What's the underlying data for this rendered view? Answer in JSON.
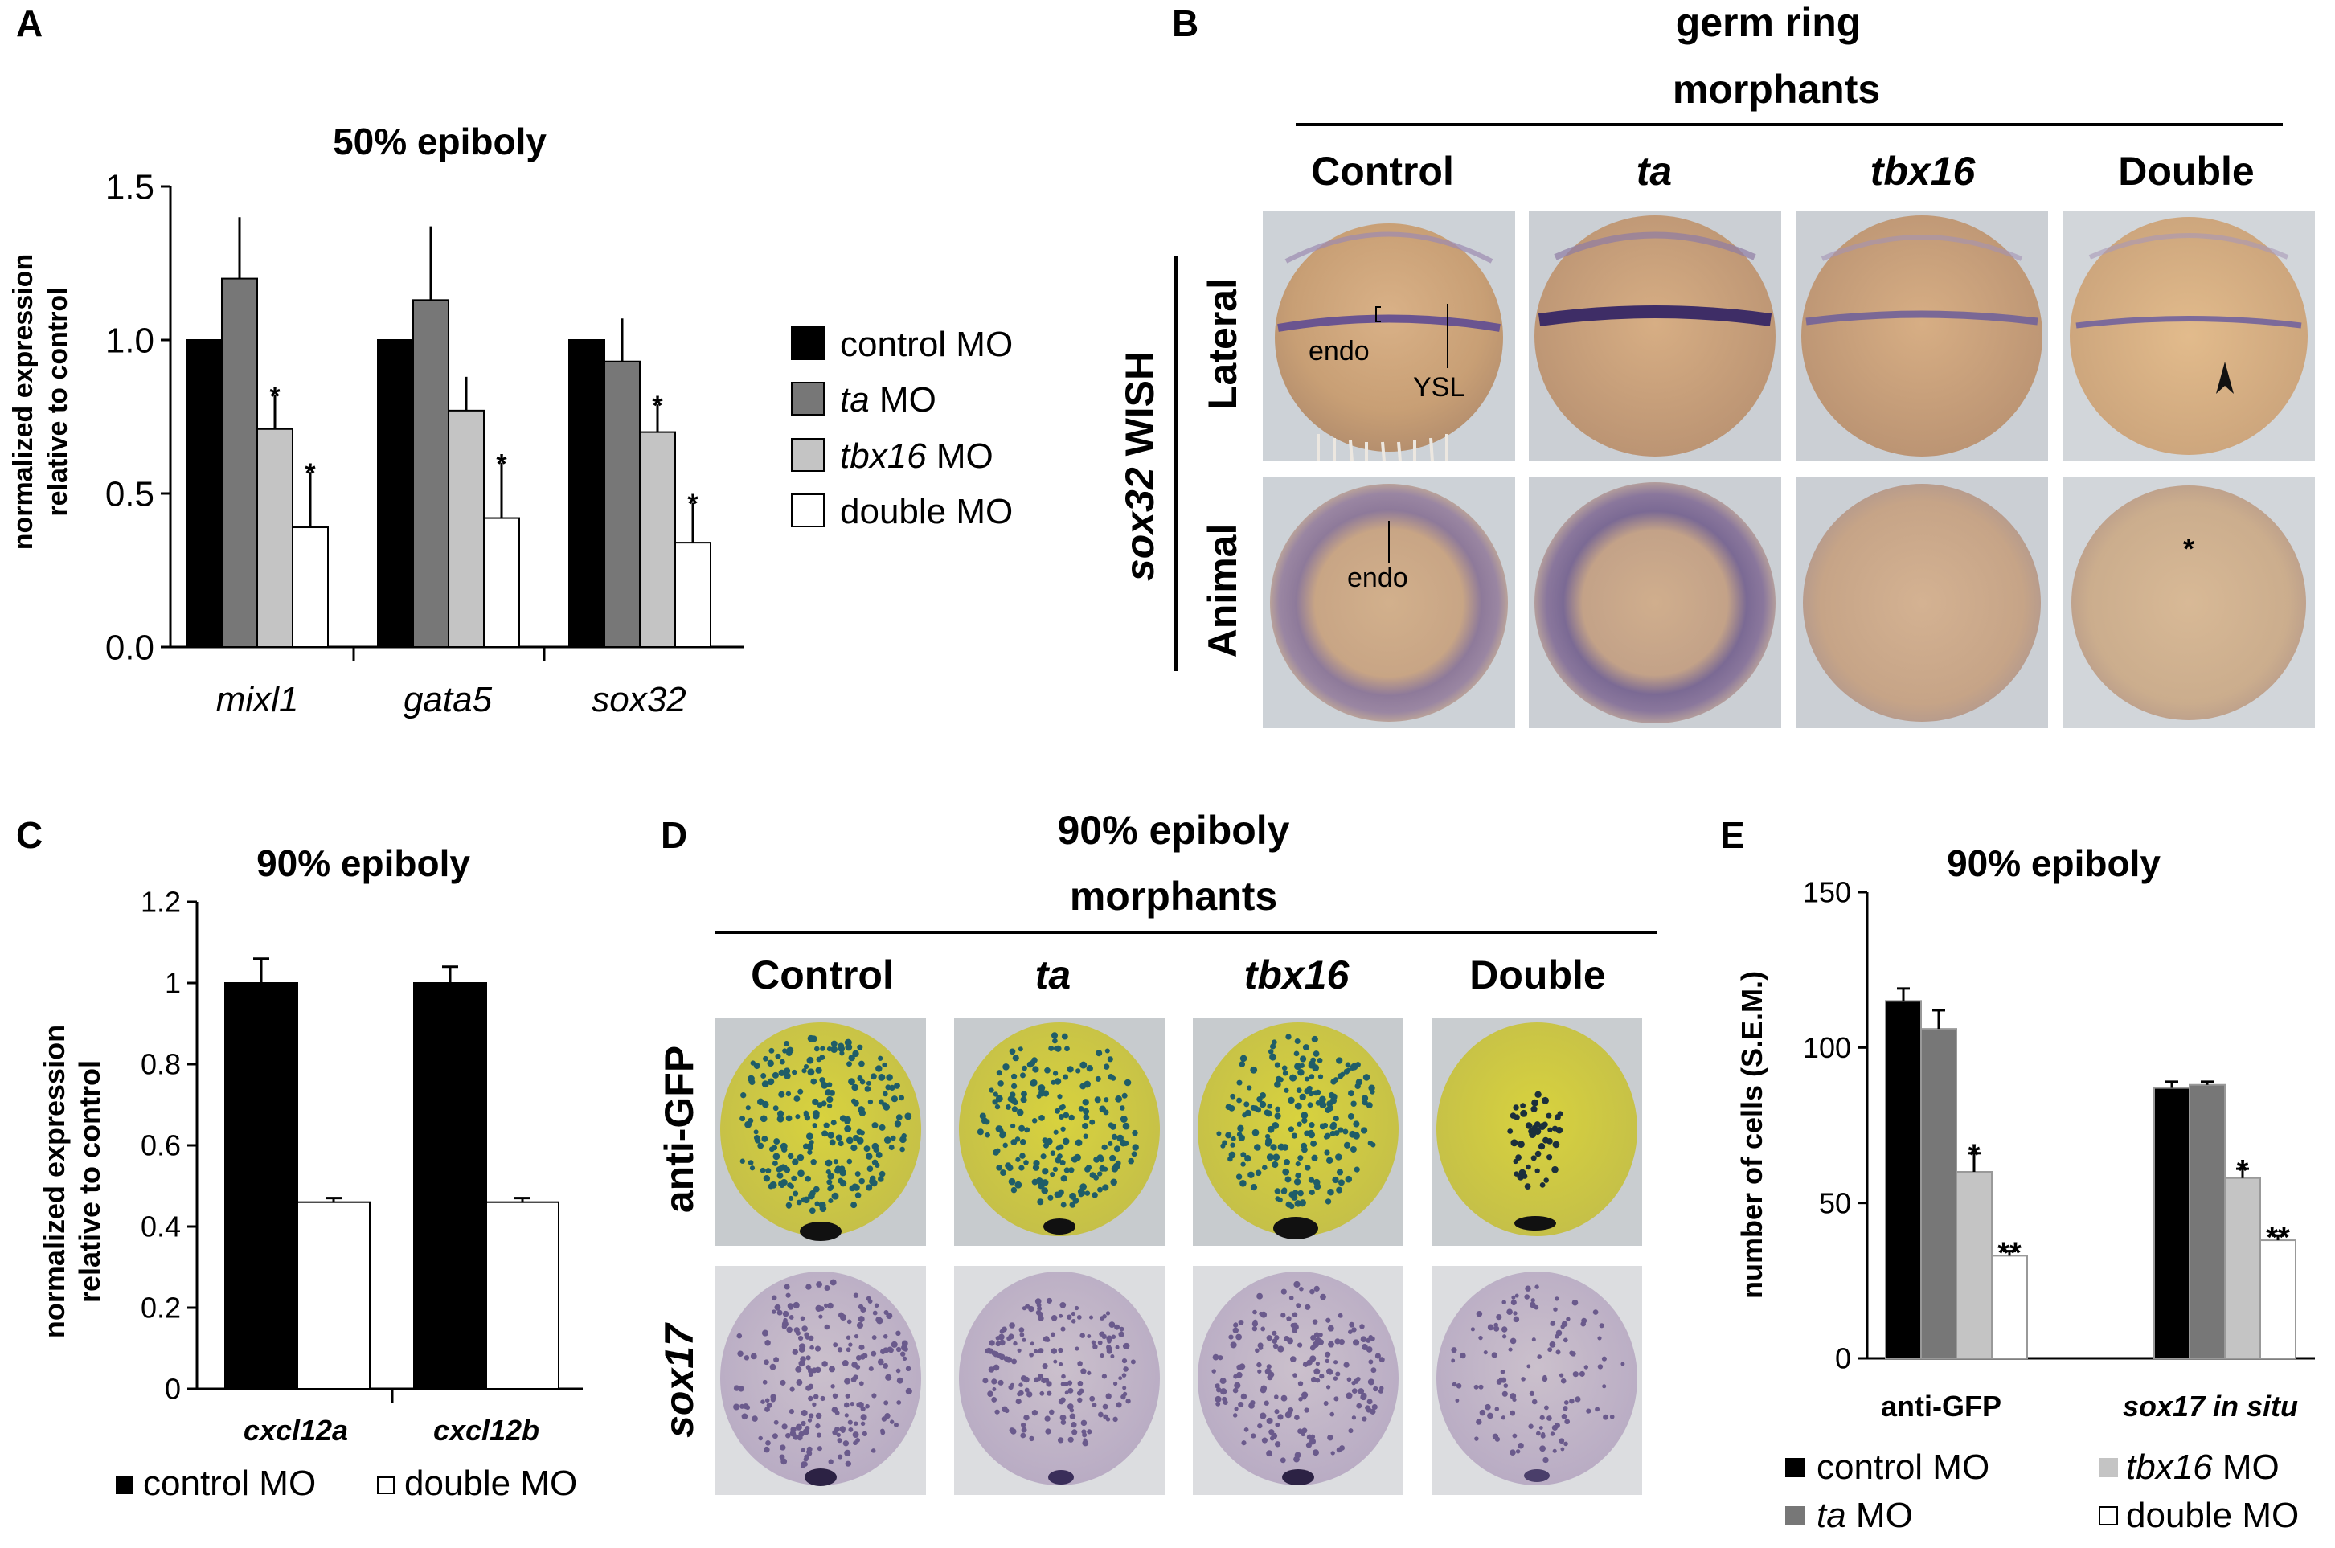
{
  "panels": {
    "a": {
      "letter": "A",
      "title": "50% epiboly",
      "ylabel_line1": "normalized expression",
      "ylabel_line2": "relative to control",
      "yticks": [
        "0.0",
        "0.5",
        "1.0",
        "1.5"
      ],
      "legend": [
        {
          "italic": "",
          "text": "control MO"
        },
        {
          "italic": "ta",
          "text": " MO"
        },
        {
          "italic": "tbx16",
          "text": " MO"
        },
        {
          "italic": "",
          "text": "double MO"
        }
      ]
    },
    "b": {
      "letter": "B",
      "header_line1": "germ ring",
      "header_line2": "morphants",
      "columns": [
        "Control",
        "ta",
        "tbx16",
        "Double"
      ],
      "side_label_italic": "sox32",
      "side_label_rest": " WISH",
      "rows": [
        "Lateral",
        "Animal"
      ],
      "annotations": {
        "endo_lateral": "endo",
        "ysl": "YSL",
        "endo_animal": "endo",
        "asterisk": "*"
      }
    },
    "c": {
      "letter": "C",
      "title": "90% epiboly",
      "ylabel_line1": "normalized expression",
      "ylabel_line2": "relative to control",
      "yticks": [
        "0",
        "0.2",
        "0.4",
        "0.6",
        "0.8",
        "1",
        "1.2"
      ],
      "legend": [
        "control MO",
        "double MO"
      ]
    },
    "d": {
      "letter": "D",
      "header_line1": "90% epiboly",
      "header_line2": "morphants",
      "columns": [
        "Control",
        "ta",
        "tbx16",
        "Double"
      ],
      "rows": [
        "anti-GFP",
        "sox17"
      ]
    },
    "e": {
      "letter": "E",
      "title": "90% epiboly",
      "ylabel": "number of cells (S.E.M.)",
      "yticks": [
        "0",
        "50",
        "100",
        "150"
      ],
      "legend": [
        {
          "italic": "",
          "text": "control MO"
        },
        {
          "italic": "tbx16",
          "text": " MO"
        },
        {
          "italic": "ta",
          "text": " MO"
        },
        {
          "italic": "",
          "text": "double MO"
        }
      ]
    }
  },
  "chart_data": [
    {
      "type": "bar",
      "title": "50% epiboly",
      "ylabel": "normalized expression relative to control",
      "ylim": [
        0,
        1.5
      ],
      "categories": [
        "mixl1",
        "gata5",
        "sox32"
      ],
      "series": [
        {
          "name": "control MO",
          "color": "#000000",
          "values": [
            1.0,
            1.0,
            1.0
          ],
          "errors": [
            0,
            0,
            0
          ],
          "stars": [
            "",
            "",
            ""
          ]
        },
        {
          "name": "ta MO",
          "color": "#777777",
          "values": [
            1.2,
            1.13,
            0.93
          ],
          "errors": [
            0.2,
            0.24,
            0.14
          ],
          "stars": [
            "",
            "",
            ""
          ]
        },
        {
          "name": "tbx16 MO",
          "color": "#c4c4c4",
          "values": [
            0.71,
            0.77,
            0.7
          ],
          "errors": [
            0.11,
            0.11,
            0.09
          ],
          "stars": [
            "*",
            "",
            "*"
          ]
        },
        {
          "name": "double MO",
          "color": "#ffffff",
          "values": [
            0.39,
            0.42,
            0.34
          ],
          "errors": [
            0.18,
            0.18,
            0.13
          ],
          "stars": [
            "*",
            "*",
            "*"
          ]
        }
      ]
    },
    {
      "type": "bar",
      "title": "90% epiboly",
      "ylabel": "normalized expression relative to control",
      "ylim": [
        0,
        1.2
      ],
      "categories": [
        "cxcl12a",
        "cxcl12b"
      ],
      "series": [
        {
          "name": "control MO",
          "color": "#000000",
          "values": [
            1.0,
            1.0
          ],
          "errors": [
            0.06,
            0.04
          ]
        },
        {
          "name": "double MO",
          "color": "#ffffff",
          "values": [
            0.46,
            0.46
          ],
          "errors": [
            0.01,
            0.01
          ]
        }
      ]
    },
    {
      "type": "bar",
      "title": "90% epiboly",
      "ylabel": "number of cells (S.E.M.)",
      "ylim": [
        0,
        150
      ],
      "categories": [
        "anti-GFP",
        "sox17 in situ"
      ],
      "series": [
        {
          "name": "control MO",
          "color": "#000000",
          "values": [
            115,
            87
          ],
          "errors": [
            4,
            2
          ],
          "stars": [
            "",
            ""
          ]
        },
        {
          "name": "ta MO",
          "color": "#777777",
          "values": [
            106,
            88
          ],
          "errors": [
            6,
            1
          ],
          "stars": [
            "",
            ""
          ]
        },
        {
          "name": "tbx16 MO",
          "color": "#c4c4c4",
          "values": [
            60,
            58
          ],
          "errors": [
            6,
            3
          ],
          "stars": [
            "*",
            "*"
          ]
        },
        {
          "name": "double MO",
          "color": "#ffffff",
          "values": [
            33,
            38
          ],
          "errors": [
            1.5,
            1.5
          ],
          "stars": [
            "**",
            "**"
          ]
        }
      ]
    }
  ]
}
